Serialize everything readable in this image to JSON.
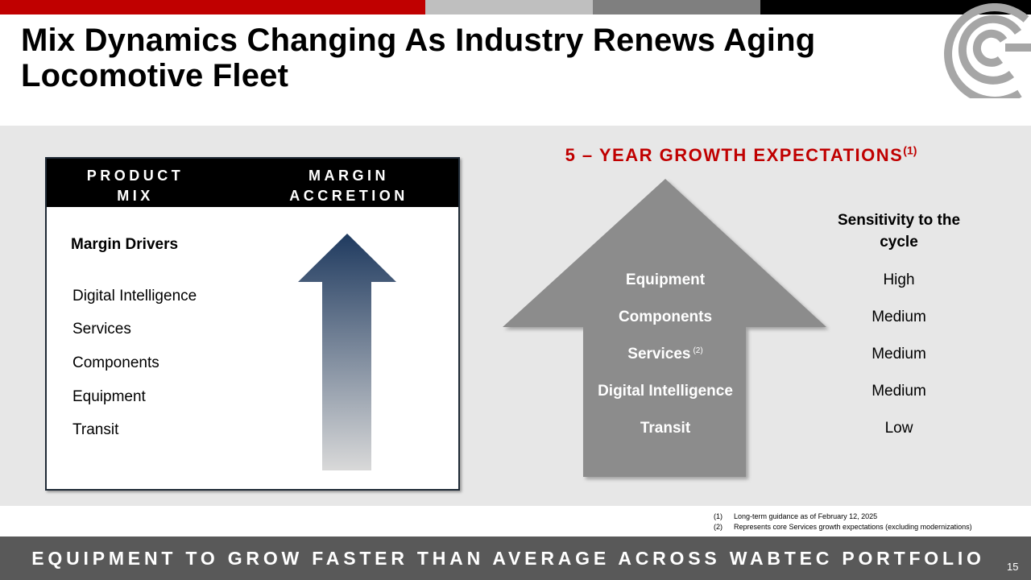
{
  "slide": {
    "title": "Mix Dynamics Changing As Industry Renews Aging Locomotive Fleet",
    "page_number": "15"
  },
  "left_panel": {
    "header_left": "PRODUCT MIX",
    "header_right": "MARGIN ACCRETION",
    "drivers_title": "Margin Drivers",
    "drivers": [
      "Digital Intelligence",
      "Services",
      "Components",
      "Equipment",
      "Transit"
    ]
  },
  "growth": {
    "title": "5 – YEAR GROWTH EXPECTATIONS",
    "title_note": "(1)",
    "segments": [
      {
        "label": "Equipment",
        "note": "",
        "sensitivity": "High"
      },
      {
        "label": "Components",
        "note": "",
        "sensitivity": "Medium"
      },
      {
        "label": "Services",
        "note": "(2)",
        "sensitivity": "Medium"
      },
      {
        "label": "Digital Intelligence",
        "note": "",
        "sensitivity": "Medium"
      },
      {
        "label": "Transit",
        "note": "",
        "sensitivity": "Low"
      }
    ],
    "sensitivity_title": "Sensitivity to the cycle"
  },
  "footnotes": [
    {
      "num": "(1)",
      "text": "Long-term guidance as of February 12, 2025"
    },
    {
      "num": "(2)",
      "text": "Represents core Services growth expectations (excluding modernizations)"
    }
  ],
  "bottom_banner": "EQUIPMENT TO GROW FASTER THAN AVERAGE ACROSS WABTEC PORTFOLIO",
  "colors": {
    "brand_red": "#c00000",
    "arrow_dark": "#1f3a5f",
    "arrow_light": "#d9d9d9",
    "big_arrow": "#8c8c8c",
    "banner": "#595959"
  }
}
